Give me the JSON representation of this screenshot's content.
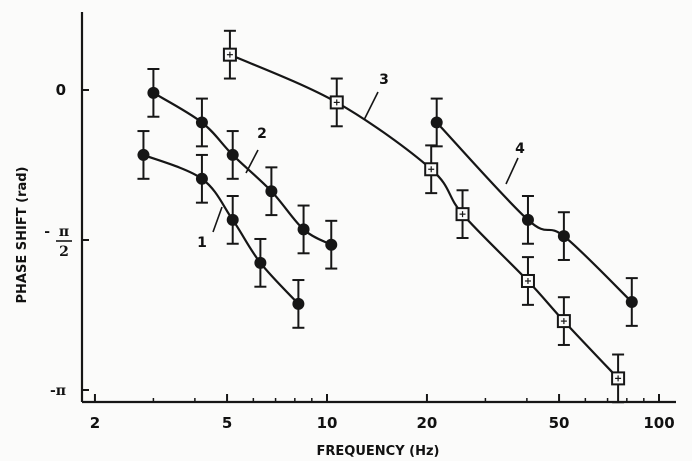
{
  "chart_data": {
    "type": "scatter",
    "title": "",
    "xlabel": "FREQUENCY (Hz)",
    "ylabel": "PHASE SHIFT (rad)",
    "x_scale": "log",
    "xlim": [
      2,
      100
    ],
    "ylim": [
      -3.14159,
      0.4
    ],
    "grid": false,
    "x_ticks": [
      {
        "value": 2,
        "label": "2"
      },
      {
        "value": 5,
        "label": "5"
      },
      {
        "value": 10,
        "label": "10"
      },
      {
        "value": 20,
        "label": "20"
      },
      {
        "value": 50,
        "label": "50"
      },
      {
        "value": 100,
        "label": "100"
      }
    ],
    "y_ticks": [
      {
        "value": 0,
        "label": "0"
      },
      {
        "value": -1.5708,
        "label": "-π/2"
      },
      {
        "value": -3.14159,
        "label": "-π"
      }
    ],
    "series": [
      {
        "name": "1",
        "marker": "filled-circle",
        "x": [
          2.8,
          4.2,
          5.2,
          6.3,
          8.2
        ],
        "y": [
          -0.68,
          -0.93,
          -1.36,
          -1.81,
          -2.24
        ],
        "err": [
          0.25,
          0.25,
          0.25,
          0.25,
          0.25
        ]
      },
      {
        "name": "2",
        "marker": "filled-circle",
        "x": [
          3.0,
          4.2,
          5.2,
          6.8,
          8.5,
          10.3
        ],
        "y": [
          -0.03,
          -0.34,
          -0.68,
          -1.06,
          -1.46,
          -1.62
        ],
        "err": [
          0.25,
          0.25,
          0.25,
          0.25,
          0.25,
          0.25
        ]
      },
      {
        "name": "3",
        "marker": "open-square",
        "x": [
          5.1,
          10.7,
          20.6,
          25.6,
          40.3,
          51.7,
          75.3
        ],
        "y": [
          0.37,
          -0.13,
          -0.83,
          -1.3,
          -2.0,
          -2.42,
          -3.02
        ],
        "err": [
          0.25,
          0.25,
          0.25,
          0.25,
          0.25,
          0.25,
          0.25
        ]
      },
      {
        "name": "4",
        "marker": "filled-circle",
        "x": [
          21.4,
          40.3,
          51.7,
          82.8
        ],
        "y": [
          -0.34,
          -1.36,
          -1.53,
          -2.22
        ],
        "err": [
          0.25,
          0.25,
          0.25,
          0.25
        ]
      }
    ],
    "curve_labels": [
      "1",
      "2",
      "3",
      "4"
    ]
  }
}
